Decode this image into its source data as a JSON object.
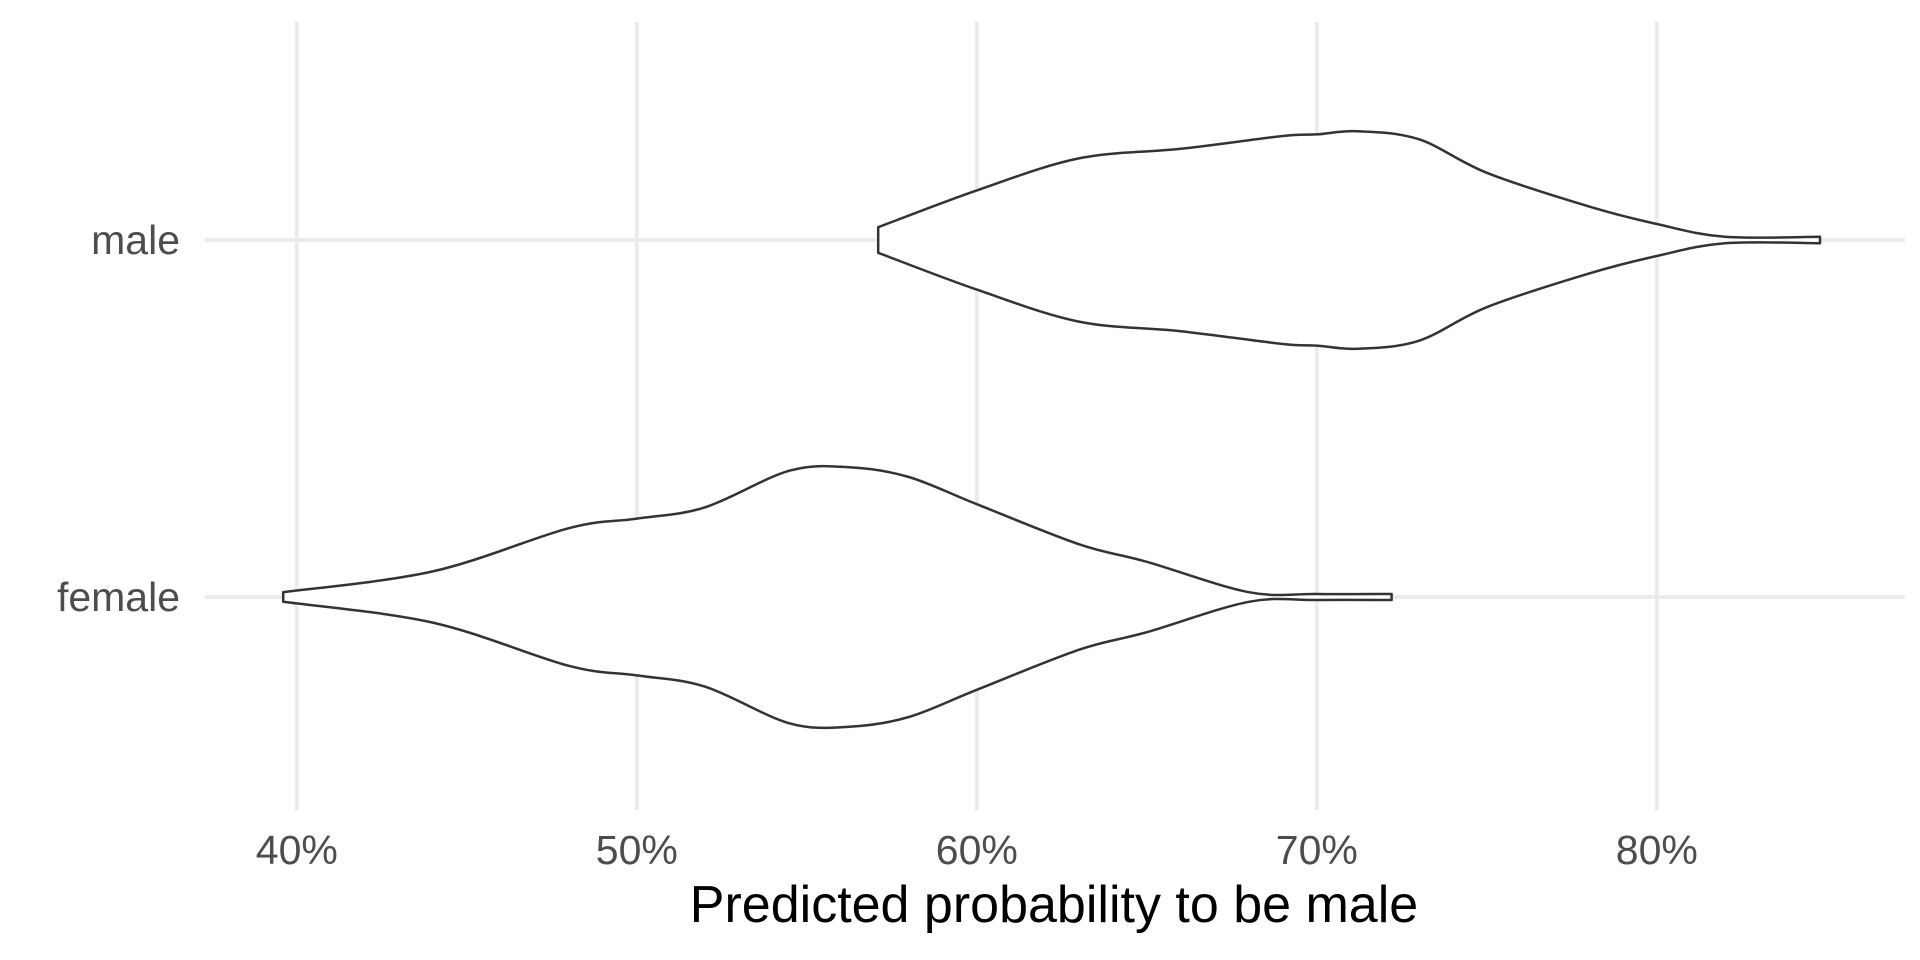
{
  "chart_data": {
    "type": "violin",
    "orientation": "horizontal",
    "title": "",
    "xlabel": "Predicted probability to be male",
    "ylabel": "",
    "xlim": [
      0.373,
      0.873
    ],
    "x_ticks": [
      0.4,
      0.5,
      0.6,
      0.7,
      0.8
    ],
    "x_tick_labels": [
      "40%",
      "50%",
      "60%",
      "70%",
      "80%"
    ],
    "categories": [
      "female",
      "male"
    ],
    "grid": true,
    "legend": "none",
    "colors": {
      "outline": "#333333",
      "fill": "#ffffff",
      "grid": "#ebebeb",
      "tick_text": "#4d4d4d",
      "axis_title": "#000000"
    },
    "series": [
      {
        "category": "male",
        "min": 0.571,
        "max": 0.848,
        "density_profile": [
          [
            0.571,
            0.08
          ],
          [
            0.6,
            0.31
          ],
          [
            0.63,
            0.51
          ],
          [
            0.66,
            0.57
          ],
          [
            0.69,
            0.65
          ],
          [
            0.7,
            0.66
          ],
          [
            0.712,
            0.68
          ],
          [
            0.73,
            0.63
          ],
          [
            0.75,
            0.42
          ],
          [
            0.78,
            0.21
          ],
          [
            0.8,
            0.1
          ],
          [
            0.82,
            0.02
          ],
          [
            0.848,
            0.02
          ]
        ]
      },
      {
        "category": "female",
        "min": 0.396,
        "max": 0.722,
        "density_profile": [
          [
            0.396,
            0.03
          ],
          [
            0.44,
            0.16
          ],
          [
            0.48,
            0.43
          ],
          [
            0.5,
            0.49
          ],
          [
            0.52,
            0.56
          ],
          [
            0.545,
            0.79
          ],
          [
            0.563,
            0.81
          ],
          [
            0.58,
            0.75
          ],
          [
            0.6,
            0.58
          ],
          [
            0.63,
            0.33
          ],
          [
            0.65,
            0.22
          ],
          [
            0.68,
            0.03
          ],
          [
            0.7,
            0.0
          ],
          [
            0.722,
            0.0
          ]
        ]
      }
    ]
  }
}
